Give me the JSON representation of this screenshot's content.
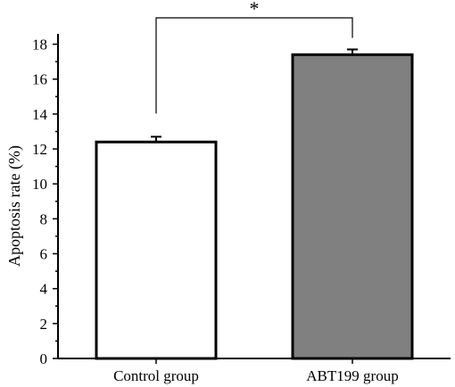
{
  "chart_data": {
    "type": "bar",
    "categories": [
      "Control group",
      "ABT199 group"
    ],
    "values": [
      12.4,
      17.4
    ],
    "errors": [
      0.3,
      0.3
    ],
    "bar_colors": [
      "#ffffff",
      "#808080"
    ],
    "ylabel": "Apoptosis rate (%)",
    "xlabel": "",
    "ylim": [
      0,
      19
    ],
    "yticks": [
      0,
      2,
      4,
      6,
      8,
      10,
      12,
      14,
      16,
      18
    ],
    "significance": {
      "label": "*",
      "between": [
        0,
        1
      ]
    },
    "grid": false
  }
}
